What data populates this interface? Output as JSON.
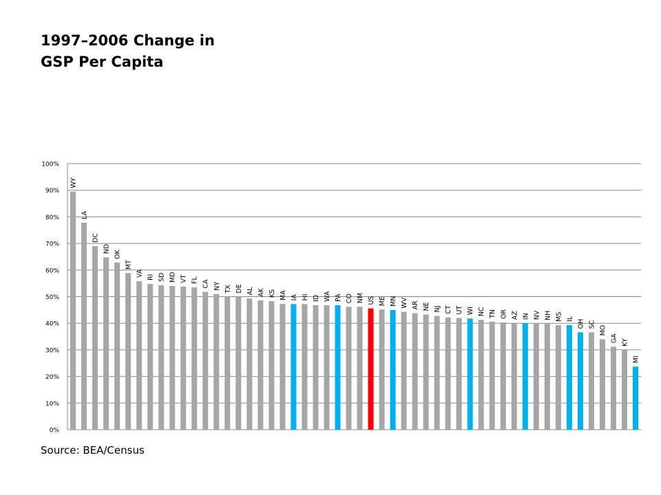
{
  "page": {
    "title_line1": "1997–2006 Change in",
    "title_line2": "GSP Per Capita",
    "source": "Source: BEA/Census"
  },
  "colors": {
    "default_bar": "#a6a6a6",
    "highlight_bar": "#00b0f0",
    "us_bar": "#ff0000",
    "gridline": "#888888",
    "axis_text": "#000000"
  },
  "chart_data": {
    "type": "bar",
    "title": "1997–2006 Change in GSP Per Capita",
    "xlabel": "",
    "ylabel": "",
    "ylim": [
      0,
      100
    ],
    "y_ticks": [
      "0%",
      "10%",
      "20%",
      "30%",
      "40%",
      "50%",
      "60%",
      "70%",
      "80%",
      "90%",
      "100%"
    ],
    "grid": true,
    "legend": "none",
    "categories": [
      "WY",
      "LA",
      "DC",
      "ND",
      "OK",
      "MT",
      "VA",
      "RI",
      "SD",
      "MD",
      "VT",
      "FL",
      "CA",
      "NY",
      "TX",
      "DE",
      "AL",
      "AK",
      "KS",
      "MA",
      "IA",
      "HI",
      "ID",
      "WA",
      "PA",
      "CO",
      "NM",
      "US",
      "ME",
      "MN",
      "WV",
      "AR",
      "NE",
      "NJ",
      "CT",
      "UT",
      "WI",
      "NC",
      "TN",
      "OR",
      "AZ",
      "IN",
      "NV",
      "NH",
      "MS",
      "IL",
      "OH",
      "SC",
      "MO",
      "GA",
      "KY",
      "MI"
    ],
    "values": [
      89.5,
      77.8,
      69,
      64.8,
      62.8,
      58.9,
      55.8,
      54.8,
      54.3,
      54,
      53.8,
      53.5,
      51.8,
      51,
      50,
      50,
      49.3,
      48.6,
      48.3,
      47.3,
      47.2,
      47.2,
      46.8,
      46.8,
      46.8,
      46.2,
      46.2,
      45.6,
      45.2,
      45,
      44.3,
      43.8,
      43.3,
      42.8,
      42.2,
      42,
      41.8,
      41.3,
      40.6,
      40.3,
      40,
      40,
      40,
      39.8,
      39.3,
      39.3,
      36.6,
      36.6,
      34,
      31.2,
      30,
      23.7
    ],
    "highlighted": [
      "IA",
      "PA",
      "MN",
      "WI",
      "IN",
      "IL",
      "OH",
      "MI"
    ],
    "reference": "US"
  }
}
